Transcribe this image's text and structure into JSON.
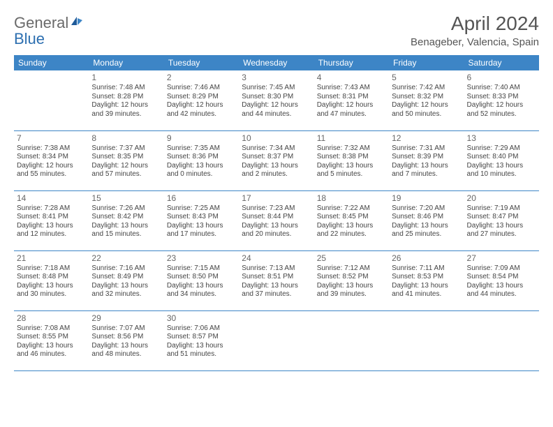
{
  "brand": {
    "text1": "General",
    "text2": "Blue"
  },
  "title": "April 2024",
  "location": "Benageber, Valencia, Spain",
  "colors": {
    "header_bg": "#3d85c6",
    "header_text": "#ffffff",
    "cell_border": "#3d85c6",
    "body_text": "#444",
    "title_text": "#555",
    "logo_gray": "#6a6a6a",
    "logo_blue": "#2d6fb0"
  },
  "day_headers": [
    "Sunday",
    "Monday",
    "Tuesday",
    "Wednesday",
    "Thursday",
    "Friday",
    "Saturday"
  ],
  "weeks": [
    [
      null,
      {
        "n": "1",
        "sr": "Sunrise: 7:48 AM",
        "ss": "Sunset: 8:28 PM",
        "d1": "Daylight: 12 hours",
        "d2": "and 39 minutes."
      },
      {
        "n": "2",
        "sr": "Sunrise: 7:46 AM",
        "ss": "Sunset: 8:29 PM",
        "d1": "Daylight: 12 hours",
        "d2": "and 42 minutes."
      },
      {
        "n": "3",
        "sr": "Sunrise: 7:45 AM",
        "ss": "Sunset: 8:30 PM",
        "d1": "Daylight: 12 hours",
        "d2": "and 44 minutes."
      },
      {
        "n": "4",
        "sr": "Sunrise: 7:43 AM",
        "ss": "Sunset: 8:31 PM",
        "d1": "Daylight: 12 hours",
        "d2": "and 47 minutes."
      },
      {
        "n": "5",
        "sr": "Sunrise: 7:42 AM",
        "ss": "Sunset: 8:32 PM",
        "d1": "Daylight: 12 hours",
        "d2": "and 50 minutes."
      },
      {
        "n": "6",
        "sr": "Sunrise: 7:40 AM",
        "ss": "Sunset: 8:33 PM",
        "d1": "Daylight: 12 hours",
        "d2": "and 52 minutes."
      }
    ],
    [
      {
        "n": "7",
        "sr": "Sunrise: 7:38 AM",
        "ss": "Sunset: 8:34 PM",
        "d1": "Daylight: 12 hours",
        "d2": "and 55 minutes."
      },
      {
        "n": "8",
        "sr": "Sunrise: 7:37 AM",
        "ss": "Sunset: 8:35 PM",
        "d1": "Daylight: 12 hours",
        "d2": "and 57 minutes."
      },
      {
        "n": "9",
        "sr": "Sunrise: 7:35 AM",
        "ss": "Sunset: 8:36 PM",
        "d1": "Daylight: 13 hours",
        "d2": "and 0 minutes."
      },
      {
        "n": "10",
        "sr": "Sunrise: 7:34 AM",
        "ss": "Sunset: 8:37 PM",
        "d1": "Daylight: 13 hours",
        "d2": "and 2 minutes."
      },
      {
        "n": "11",
        "sr": "Sunrise: 7:32 AM",
        "ss": "Sunset: 8:38 PM",
        "d1": "Daylight: 13 hours",
        "d2": "and 5 minutes."
      },
      {
        "n": "12",
        "sr": "Sunrise: 7:31 AM",
        "ss": "Sunset: 8:39 PM",
        "d1": "Daylight: 13 hours",
        "d2": "and 7 minutes."
      },
      {
        "n": "13",
        "sr": "Sunrise: 7:29 AM",
        "ss": "Sunset: 8:40 PM",
        "d1": "Daylight: 13 hours",
        "d2": "and 10 minutes."
      }
    ],
    [
      {
        "n": "14",
        "sr": "Sunrise: 7:28 AM",
        "ss": "Sunset: 8:41 PM",
        "d1": "Daylight: 13 hours",
        "d2": "and 12 minutes."
      },
      {
        "n": "15",
        "sr": "Sunrise: 7:26 AM",
        "ss": "Sunset: 8:42 PM",
        "d1": "Daylight: 13 hours",
        "d2": "and 15 minutes."
      },
      {
        "n": "16",
        "sr": "Sunrise: 7:25 AM",
        "ss": "Sunset: 8:43 PM",
        "d1": "Daylight: 13 hours",
        "d2": "and 17 minutes."
      },
      {
        "n": "17",
        "sr": "Sunrise: 7:23 AM",
        "ss": "Sunset: 8:44 PM",
        "d1": "Daylight: 13 hours",
        "d2": "and 20 minutes."
      },
      {
        "n": "18",
        "sr": "Sunrise: 7:22 AM",
        "ss": "Sunset: 8:45 PM",
        "d1": "Daylight: 13 hours",
        "d2": "and 22 minutes."
      },
      {
        "n": "19",
        "sr": "Sunrise: 7:20 AM",
        "ss": "Sunset: 8:46 PM",
        "d1": "Daylight: 13 hours",
        "d2": "and 25 minutes."
      },
      {
        "n": "20",
        "sr": "Sunrise: 7:19 AM",
        "ss": "Sunset: 8:47 PM",
        "d1": "Daylight: 13 hours",
        "d2": "and 27 minutes."
      }
    ],
    [
      {
        "n": "21",
        "sr": "Sunrise: 7:18 AM",
        "ss": "Sunset: 8:48 PM",
        "d1": "Daylight: 13 hours",
        "d2": "and 30 minutes."
      },
      {
        "n": "22",
        "sr": "Sunrise: 7:16 AM",
        "ss": "Sunset: 8:49 PM",
        "d1": "Daylight: 13 hours",
        "d2": "and 32 minutes."
      },
      {
        "n": "23",
        "sr": "Sunrise: 7:15 AM",
        "ss": "Sunset: 8:50 PM",
        "d1": "Daylight: 13 hours",
        "d2": "and 34 minutes."
      },
      {
        "n": "24",
        "sr": "Sunrise: 7:13 AM",
        "ss": "Sunset: 8:51 PM",
        "d1": "Daylight: 13 hours",
        "d2": "and 37 minutes."
      },
      {
        "n": "25",
        "sr": "Sunrise: 7:12 AM",
        "ss": "Sunset: 8:52 PM",
        "d1": "Daylight: 13 hours",
        "d2": "and 39 minutes."
      },
      {
        "n": "26",
        "sr": "Sunrise: 7:11 AM",
        "ss": "Sunset: 8:53 PM",
        "d1": "Daylight: 13 hours",
        "d2": "and 41 minutes."
      },
      {
        "n": "27",
        "sr": "Sunrise: 7:09 AM",
        "ss": "Sunset: 8:54 PM",
        "d1": "Daylight: 13 hours",
        "d2": "and 44 minutes."
      }
    ],
    [
      {
        "n": "28",
        "sr": "Sunrise: 7:08 AM",
        "ss": "Sunset: 8:55 PM",
        "d1": "Daylight: 13 hours",
        "d2": "and 46 minutes."
      },
      {
        "n": "29",
        "sr": "Sunrise: 7:07 AM",
        "ss": "Sunset: 8:56 PM",
        "d1": "Daylight: 13 hours",
        "d2": "and 48 minutes."
      },
      {
        "n": "30",
        "sr": "Sunrise: 7:06 AM",
        "ss": "Sunset: 8:57 PM",
        "d1": "Daylight: 13 hours",
        "d2": "and 51 minutes."
      },
      null,
      null,
      null,
      null
    ]
  ]
}
